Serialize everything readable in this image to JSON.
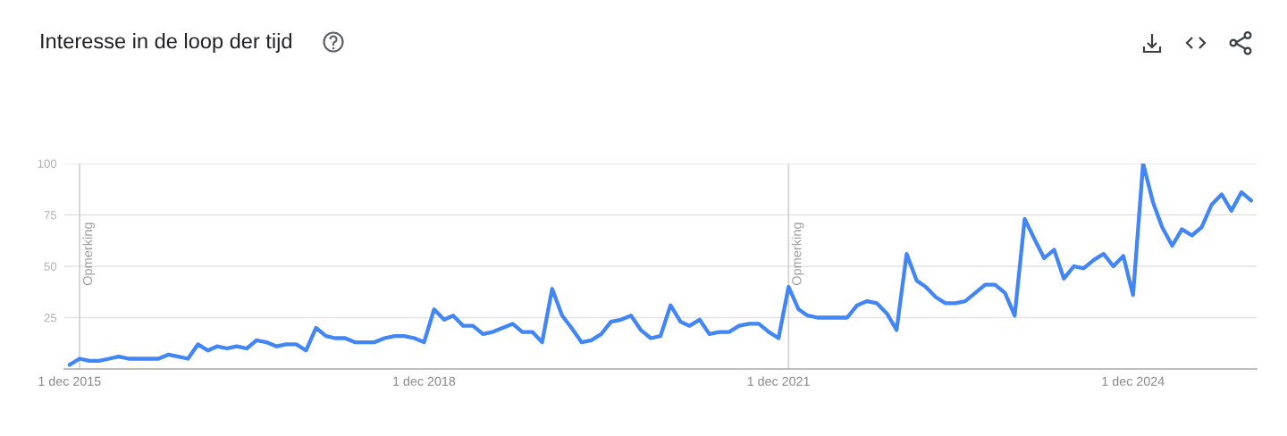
{
  "chart_data": {
    "type": "line",
    "title": "Interesse in de loop der tijd",
    "x": [
      "2015-12",
      "2016-01",
      "2016-02",
      "2016-03",
      "2016-04",
      "2016-05",
      "2016-06",
      "2016-07",
      "2016-08",
      "2016-09",
      "2016-10",
      "2016-11",
      "2016-12",
      "2017-01",
      "2017-02",
      "2017-03",
      "2017-04",
      "2017-05",
      "2017-06",
      "2017-07",
      "2017-08",
      "2017-09",
      "2017-10",
      "2017-11",
      "2017-12",
      "2018-01",
      "2018-02",
      "2018-03",
      "2018-04",
      "2018-05",
      "2018-06",
      "2018-07",
      "2018-08",
      "2018-09",
      "2018-10",
      "2018-11",
      "2018-12",
      "2019-01",
      "2019-02",
      "2019-03",
      "2019-04",
      "2019-05",
      "2019-06",
      "2019-07",
      "2019-08",
      "2019-09",
      "2019-10",
      "2019-11",
      "2019-12",
      "2020-01",
      "2020-02",
      "2020-03",
      "2020-04",
      "2020-05",
      "2020-06",
      "2020-07",
      "2020-08",
      "2020-09",
      "2020-10",
      "2020-11",
      "2020-12",
      "2021-01",
      "2021-02",
      "2021-03",
      "2021-04",
      "2021-05",
      "2021-06",
      "2021-07",
      "2021-08",
      "2021-09",
      "2021-10",
      "2021-11",
      "2021-12",
      "2022-01",
      "2022-02",
      "2022-03",
      "2022-04",
      "2022-05",
      "2022-06",
      "2022-07",
      "2022-08",
      "2022-09",
      "2022-10",
      "2022-11",
      "2022-12",
      "2023-01",
      "2023-02",
      "2023-03",
      "2023-04",
      "2023-05",
      "2023-06",
      "2023-07",
      "2023-08",
      "2023-09",
      "2023-10",
      "2023-11",
      "2023-12",
      "2024-01",
      "2024-02",
      "2024-03",
      "2024-04",
      "2024-05",
      "2024-06",
      "2024-07",
      "2024-08",
      "2024-09",
      "2024-10",
      "2024-11",
      "2024-12",
      "2025-01",
      "2025-02",
      "2025-03",
      "2025-04",
      "2025-05",
      "2025-06",
      "2025-07",
      "2025-08",
      "2025-09",
      "2025-10",
      "2025-11",
      "2025-12"
    ],
    "series": [
      {
        "color": "#4285f4",
        "values": [
          2,
          5,
          4,
          4,
          5,
          6,
          5,
          5,
          5,
          5,
          7,
          6,
          5,
          12,
          9,
          11,
          10,
          11,
          10,
          14,
          13,
          11,
          12,
          12,
          9,
          20,
          16,
          15,
          15,
          13,
          13,
          13,
          15,
          16,
          16,
          15,
          13,
          29,
          24,
          26,
          21,
          21,
          17,
          18,
          20,
          22,
          18,
          18,
          13,
          39,
          26,
          20,
          13,
          14,
          17,
          23,
          24,
          26,
          19,
          15,
          16,
          31,
          23,
          21,
          24,
          17,
          18,
          18,
          21,
          22,
          22,
          18,
          15,
          40,
          29,
          26,
          25,
          25,
          25,
          25,
          31,
          33,
          32,
          27,
          19,
          56,
          43,
          40,
          35,
          32,
          32,
          33,
          37,
          41,
          41,
          37,
          26,
          73,
          63,
          54,
          58,
          44,
          50,
          49,
          53,
          56,
          50,
          55,
          36,
          100,
          81,
          69,
          60,
          68,
          65,
          69,
          80,
          85,
          77,
          86,
          82
        ]
      }
    ],
    "xlim": [
      "2015-11-15",
      "2025-12-18"
    ],
    "xticks": [
      {
        "value": "2015-12",
        "label": "1 dec 2015"
      },
      {
        "value": "2018-12",
        "label": "1 dec 2018"
      },
      {
        "value": "2021-12",
        "label": "1 dec 2021"
      },
      {
        "value": "2024-12",
        "label": "1 dec 2024"
      }
    ],
    "ylim": [
      0,
      100
    ],
    "yticks": [
      25,
      50,
      75,
      100
    ],
    "grid": "y",
    "line_style": "solid",
    "ref_lines": [
      {
        "axis": "x",
        "value": "2016-01",
        "label": "Opmerking",
        "color": "#d0d0d0"
      },
      {
        "axis": "x",
        "value": "2022-01",
        "label": "Opmerking",
        "color": "#d0d0d0"
      }
    ]
  }
}
